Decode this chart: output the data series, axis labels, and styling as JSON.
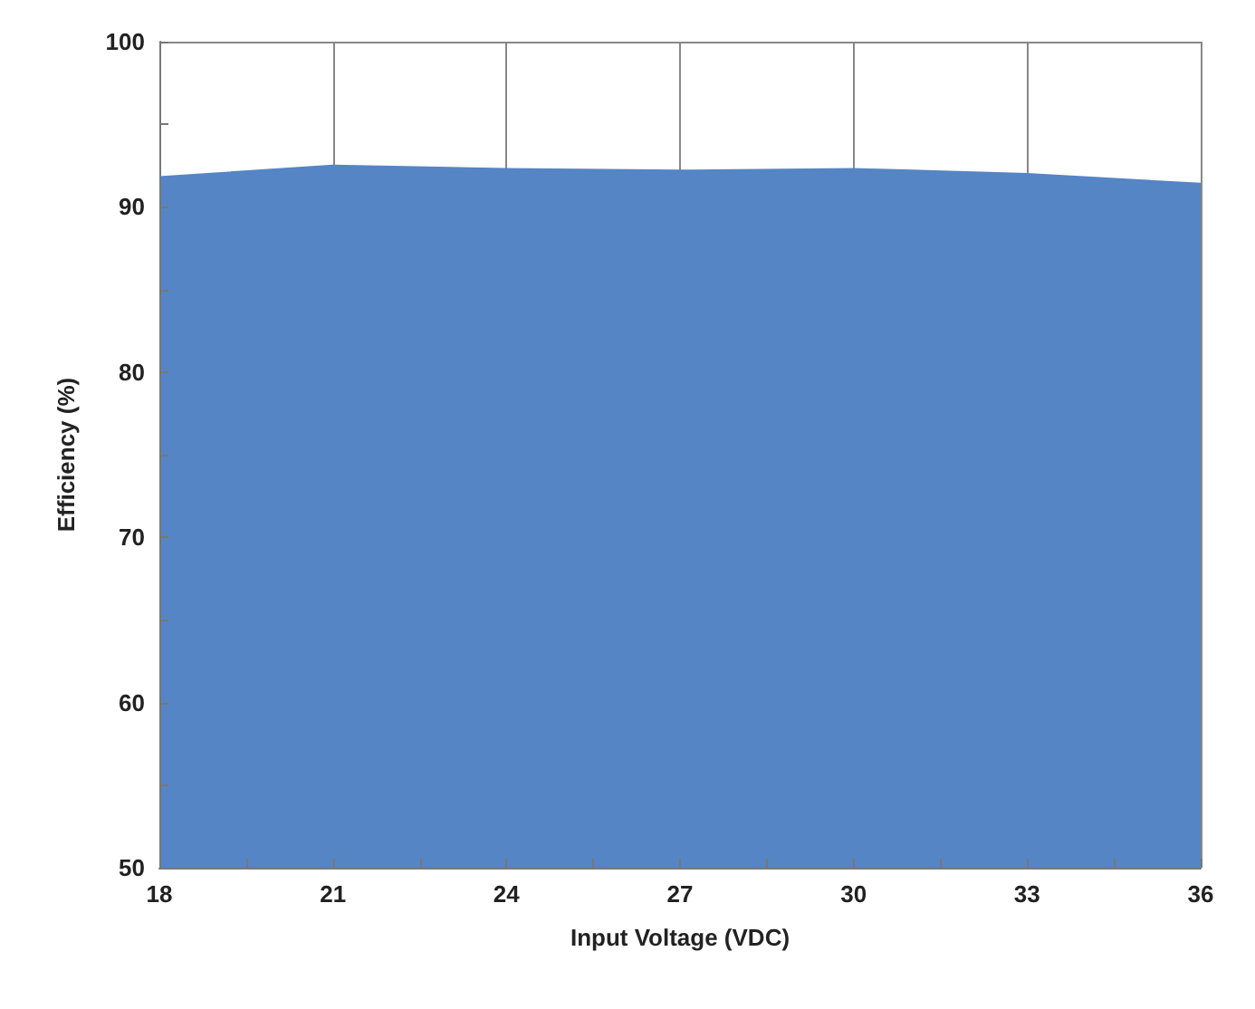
{
  "chart_data": {
    "type": "area",
    "xlabel": "Input Voltage (VDC)",
    "ylabel": "Efficiency (%)",
    "x": [
      18,
      21,
      24,
      27,
      30,
      33,
      36
    ],
    "series": [
      {
        "color": "#5585c5",
        "values": [
          91.8,
          92.5,
          92.3,
          92.2,
          92.3,
          92.0,
          91.4
        ]
      }
    ],
    "xlim": [
      18,
      36
    ],
    "xticks": [
      18,
      21,
      24,
      27,
      30,
      33,
      36
    ],
    "ylim": [
      50,
      100
    ],
    "yticks": [
      50,
      60,
      70,
      80,
      90,
      100
    ],
    "grid": true,
    "marker": "none"
  }
}
